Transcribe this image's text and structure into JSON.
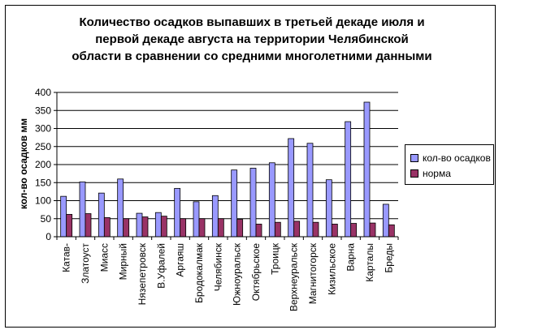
{
  "chart_data": {
    "type": "bar",
    "title": "Количество осадков выпавших в третьей декаде июля и первой декаде августа на территории Челябинской области в сравнении со средними многолетними данными",
    "title_lines": [
      "Количество осадков выпавших в третьей декаде июля и",
      "первой декаде августа на территории Челябинской",
      "области в сравнении со средними многолетними данными"
    ],
    "xlabel": "",
    "ylabel": "кол-во осадков мм",
    "ylim": [
      0,
      400
    ],
    "yticks": [
      0,
      50,
      100,
      150,
      200,
      250,
      300,
      350,
      400
    ],
    "grid": true,
    "legend_position": "right",
    "categories": [
      "Катав-",
      "Златоуст",
      "Миасс",
      "Мирный",
      "Нязепетровск",
      "В.Уфалей",
      "Аргаяш",
      "Бродокалмак",
      "Челябинск",
      "Южноуральск",
      "Октябрьское",
      "Троицк",
      "Верхнеуральск",
      "Магнитогорск",
      "Кизильское",
      "Варна",
      "Карталы",
      "Бреды"
    ],
    "series": [
      {
        "name": "кол-во осадков",
        "color": "#9999ff",
        "values": [
          112,
          152,
          121,
          160,
          65,
          67,
          134,
          97,
          114,
          185,
          190,
          205,
          272,
          259,
          158,
          319,
          373,
          90
        ]
      },
      {
        "name": "норма",
        "color": "#993366",
        "values": [
          62,
          64,
          53,
          50,
          55,
          57,
          50,
          50,
          50,
          48,
          35,
          40,
          43,
          40,
          35,
          37,
          38,
          33
        ]
      }
    ]
  }
}
